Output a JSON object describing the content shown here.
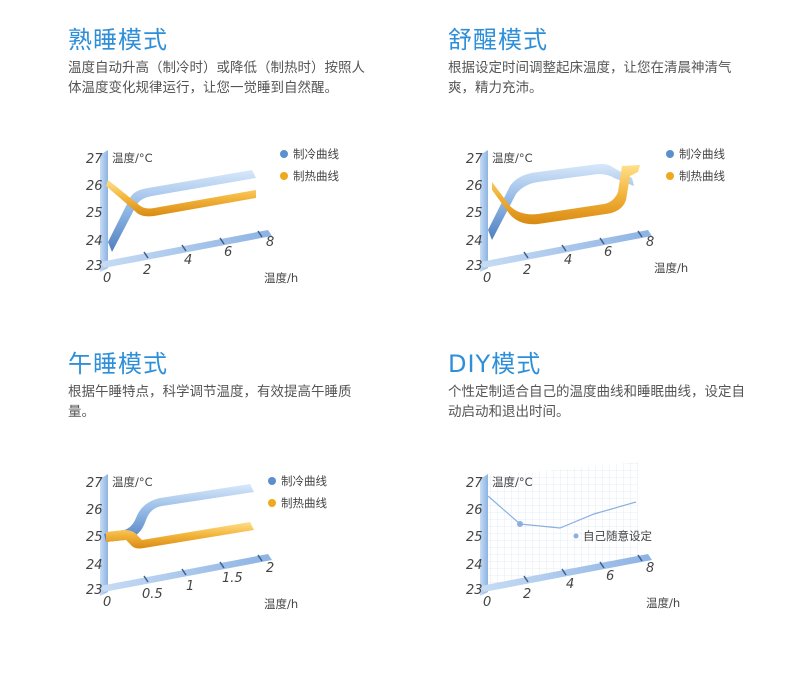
{
  "panels": [
    {
      "title": "熟睡模式",
      "desc": "温度自动升高（制冷时）或降低（制热时）按照人体温度变化规律运行，让您一觉睡到自然醒。",
      "chart": {
        "ylabel": "温度/°C",
        "xlabel": "温度/h",
        "yticks": [
          "27",
          "26",
          "25",
          "24",
          "23"
        ],
        "xticks": [
          "0",
          "2",
          "4",
          "6",
          "8"
        ],
        "legend": [
          "制冷曲线",
          "制热曲线"
        ]
      }
    },
    {
      "title": "舒醒模式",
      "desc": "根据设定时间调整起床温度，让您在清晨神清气爽，精力充沛。",
      "chart": {
        "ylabel": "温度/°C",
        "xlabel": "温度/h",
        "yticks": [
          "27",
          "26",
          "25",
          "24",
          "23"
        ],
        "xticks": [
          "0",
          "2",
          "4",
          "6",
          "8"
        ],
        "legend": [
          "制冷曲线",
          "制热曲线"
        ]
      }
    },
    {
      "title": "午睡模式",
      "desc": "根据午睡特点，科学调节温度，有效提高午睡质量。",
      "chart": {
        "ylabel": "温度/°C",
        "xlabel": "温度/h",
        "yticks": [
          "27",
          "26",
          "25",
          "24",
          "23"
        ],
        "xticks": [
          "0",
          "0.5",
          "1",
          "1.5",
          "2"
        ],
        "legend": [
          "制冷曲线",
          "制热曲线"
        ]
      }
    },
    {
      "title": "DIY模式",
      "desc": "个性定制适合自己的温度曲线和睡眠曲线，设定自动启动和退出时间。",
      "chart": {
        "ylabel": "温度/°C",
        "xlabel": "温度/h",
        "yticks": [
          "27",
          "26",
          "25",
          "24",
          "23"
        ],
        "xticks": [
          "0",
          "2",
          "4",
          "6",
          "8"
        ],
        "legend": [
          "自己随意设定"
        ]
      }
    }
  ],
  "colors": {
    "title": "#2e8fd8",
    "cool": "#5b8fce",
    "heat": "#f0a81c",
    "axis": "#9fbfe6"
  }
}
